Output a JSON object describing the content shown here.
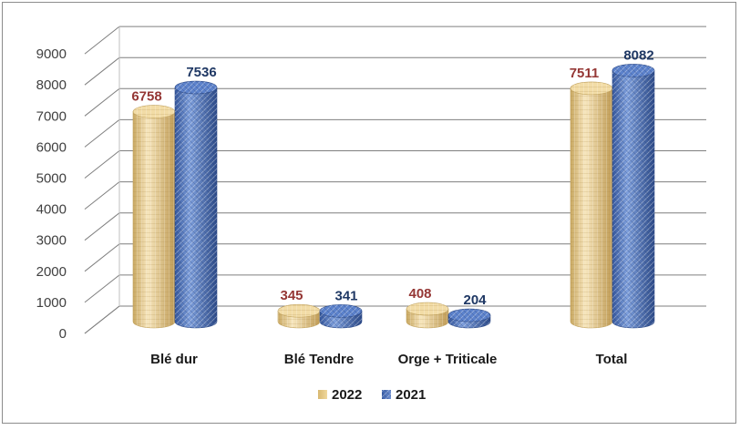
{
  "chart_data": {
    "type": "bar",
    "style": "3d-cylinder",
    "categories": [
      "Blé dur",
      "Blé Tendre",
      "Orge + Triticale",
      "Total"
    ],
    "series": [
      {
        "name": "2022",
        "values": [
          6758,
          345,
          408,
          7511
        ],
        "color": "#e6c987",
        "label_color": "#953735"
      },
      {
        "name": "2021",
        "values": [
          7536,
          341,
          204,
          8082
        ],
        "color": "#4f76c4",
        "label_color": "#1f3864"
      }
    ],
    "y_ticks": [
      "0",
      "1000",
      "2000",
      "3000",
      "4000",
      "5000",
      "6000",
      "7000",
      "8000",
      "9000"
    ],
    "ylim": [
      0,
      9000
    ],
    "grid": true,
    "legend_position": "bottom",
    "title": "",
    "xlabel": "",
    "ylabel": ""
  }
}
